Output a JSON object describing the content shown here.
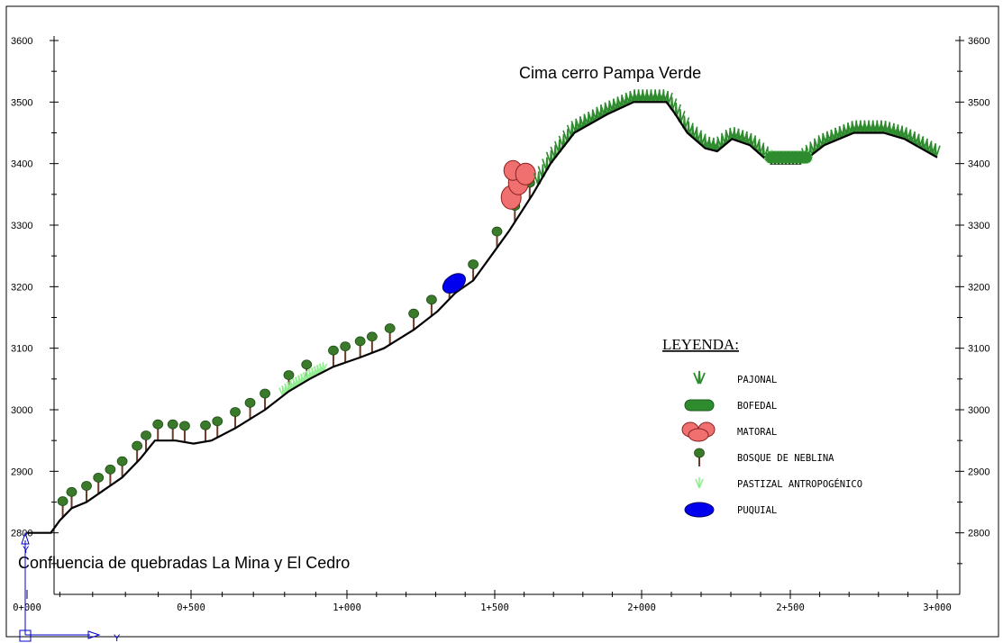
{
  "y_axis": {
    "ticks": [
      2800,
      2900,
      3000,
      3100,
      3200,
      3300,
      3400,
      3500,
      3600
    ],
    "min": 2700,
    "max": 3600
  },
  "x_axis": {
    "ticks": [
      "0+000",
      "0+500",
      "1+000",
      "1+500",
      "2+000",
      "2+500",
      "3+000"
    ],
    "min_m": 0,
    "max_m": 3060
  },
  "annotations": {
    "summit": "Cima cerro Pampa Verde",
    "confluence": "Confluencia de quebradas La Mina y El Cedro"
  },
  "legend": {
    "title": "LEYENDA:",
    "items": [
      {
        "label": "PAJONAL",
        "icon": "pajonal-icon",
        "color": "#2e8b2e"
      },
      {
        "label": "BOFEDAL",
        "icon": "bofedal-icon",
        "color": "#2e8b2e"
      },
      {
        "label": "MATORAL",
        "icon": "matoral-icon",
        "color": "#f07070"
      },
      {
        "label": "BOSQUE DE NEBLINA",
        "icon": "tree-icon",
        "color": "#3a7a2a"
      },
      {
        "label": "PASTIZAL ANTROPOGÉNICO",
        "icon": "pastizal-icon",
        "color": "#90ee90"
      },
      {
        "label": "PUQUIAL",
        "icon": "puquial-icon",
        "color": "#0000ee"
      }
    ]
  },
  "profile": [
    [
      0,
      2800
    ],
    [
      80,
      2800
    ],
    [
      110,
      2820
    ],
    [
      150,
      2840
    ],
    [
      200,
      2850
    ],
    [
      260,
      2870
    ],
    [
      320,
      2890
    ],
    [
      380,
      2920
    ],
    [
      430,
      2950
    ],
    [
      500,
      2950
    ],
    [
      560,
      2945
    ],
    [
      620,
      2950
    ],
    [
      700,
      2970
    ],
    [
      800,
      3000
    ],
    [
      880,
      3030
    ],
    [
      950,
      3050
    ],
    [
      1030,
      3070
    ],
    [
      1120,
      3085
    ],
    [
      1200,
      3100
    ],
    [
      1300,
      3130
    ],
    [
      1380,
      3160
    ],
    [
      1440,
      3190
    ],
    [
      1500,
      3210
    ],
    [
      1560,
      3250
    ],
    [
      1620,
      3290
    ],
    [
      1700,
      3350
    ],
    [
      1760,
      3400
    ],
    [
      1840,
      3450
    ],
    [
      1950,
      3480
    ],
    [
      2040,
      3500
    ],
    [
      2150,
      3500
    ],
    [
      2180,
      3480
    ],
    [
      2220,
      3450
    ],
    [
      2280,
      3425
    ],
    [
      2320,
      3420
    ],
    [
      2370,
      3440
    ],
    [
      2430,
      3430
    ],
    [
      2500,
      3400
    ],
    [
      2600,
      3400
    ],
    [
      2680,
      3430
    ],
    [
      2780,
      3450
    ],
    [
      2880,
      3450
    ],
    [
      2950,
      3440
    ],
    [
      3060,
      3410
    ]
  ],
  "vegetation": {
    "trees_m": [
      120,
      150,
      200,
      240,
      280,
      320,
      370,
      400,
      440,
      490,
      530,
      600,
      640,
      700,
      750,
      800,
      880,
      940,
      1030,
      1070,
      1120,
      1160,
      1220,
      1300,
      1360,
      1420,
      1500,
      1580,
      1640,
      1690
    ],
    "pastizal_range_m": [
      860,
      1000
    ],
    "puquial_m": 1460,
    "matoral_m": 1670,
    "pajonal_ranges_m": [
      [
        1720,
        2500
      ],
      [
        2620,
        3060
      ]
    ],
    "bofedal_range_m": [
      2480,
      2640
    ]
  }
}
